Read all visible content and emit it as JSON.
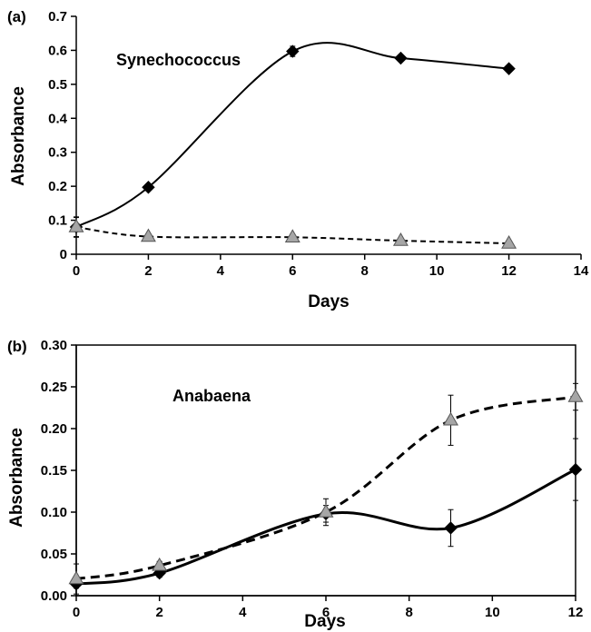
{
  "chart_data": [
    {
      "panel_label": "(a)",
      "type": "line",
      "title": "",
      "annotation": "Synechococcus",
      "xlabel": "Days",
      "ylabel": "Absorbance",
      "xlim": [
        0,
        14
      ],
      "ylim": [
        0,
        0.7
      ],
      "xticks": [
        "0",
        "2",
        "4",
        "6",
        "8",
        "10",
        "12",
        "14"
      ],
      "yticks": [
        "0",
        "0.1",
        "0.2",
        "0.3",
        "0.4",
        "0.5",
        "0.6",
        "0.7"
      ],
      "grid": false,
      "legend": "none",
      "series": [
        {
          "marker": "diamond",
          "color": "#000000",
          "line_style": "solid",
          "x": [
            0,
            2,
            6,
            9,
            12
          ],
          "y": [
            0.08,
            0.197,
            0.597,
            0.577,
            0.546
          ],
          "error": [
            0.03,
            0.01,
            0.015,
            0.008,
            0.008
          ]
        },
        {
          "marker": "triangle",
          "color": "#a6a6a6",
          "line_style": "dashed",
          "x": [
            0,
            2,
            6,
            9,
            12
          ],
          "y": [
            0.08,
            0.052,
            0.05,
            0.04,
            0.032
          ],
          "error": [
            0.028,
            0.005,
            0.005,
            0.005,
            0.005
          ]
        }
      ]
    },
    {
      "panel_label": "(b)",
      "type": "line",
      "title": "",
      "annotation": "Anabaena",
      "xlabel": "Days",
      "ylabel": "Absorbance",
      "xlim": [
        0,
        12
      ],
      "ylim": [
        0,
        0.3
      ],
      "xticks": [
        "0",
        "2",
        "4",
        "6",
        "8",
        "10",
        "12"
      ],
      "yticks": [
        "0.00",
        "0.05",
        "0.10",
        "0.15",
        "0.20",
        "0.25",
        "0.30"
      ],
      "grid": false,
      "legend": "none",
      "series": [
        {
          "marker": "diamond",
          "color": "#000000",
          "line_style": "solid",
          "x": [
            0,
            2,
            6,
            9,
            12
          ],
          "y": [
            0.014,
            0.027,
            0.098,
            0.081,
            0.151
          ],
          "error": [
            0.005,
            0.005,
            0.01,
            0.022,
            0.037
          ]
        },
        {
          "marker": "triangle",
          "color": "#a6a6a6",
          "line_style": "dashed",
          "x": [
            0,
            2,
            6,
            9,
            12
          ],
          "y": [
            0.02,
            0.036,
            0.1,
            0.21,
            0.238
          ],
          "error": [
            0.018,
            0.005,
            0.016,
            0.03,
            0.016
          ]
        }
      ]
    }
  ]
}
